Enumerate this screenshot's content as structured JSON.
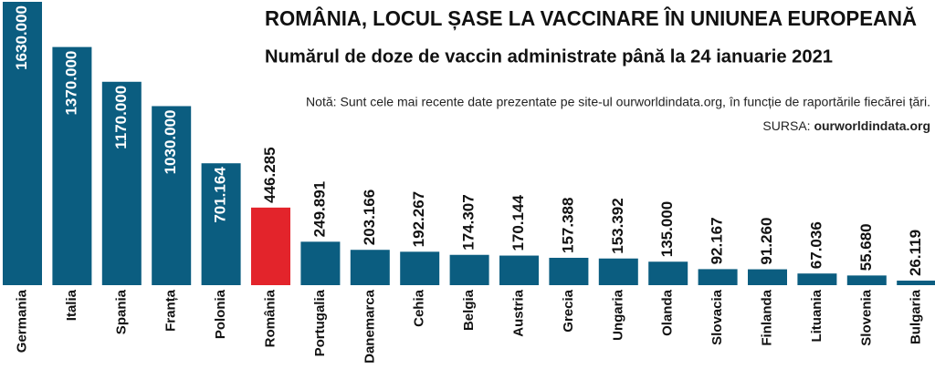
{
  "chart_data": {
    "type": "bar",
    "title": "ROMÂNIA, LOCUL ȘASE LA VACCINARE ÎN UNIUNEA EUROPEANĂ",
    "subtitle": "Numărul de doze de vaccin administrate până la 24 ianuarie 2021",
    "note": "Notă: Sunt cele mai recente date prezentate pe site-ul ourworldindata.org, în funcție de raportările fiecărei țări.",
    "source_label": "SURSA:",
    "source": "ourworldindata.org",
    "categories": [
      "Germania",
      "Italia",
      "Spania",
      "Franța",
      "Polonia",
      "România",
      "Portugalia",
      "Danemarca",
      "Cehia",
      "Belgia",
      "Austria",
      "Grecia",
      "Ungaria",
      "Olanda",
      "Slovacia",
      "Finlanda",
      "Lituania",
      "Slovenia",
      "Bulgaria"
    ],
    "values": [
      1630000,
      1370000,
      1170000,
      1030000,
      701164,
      446285,
      249891,
      203166,
      192267,
      174307,
      170144,
      157388,
      153392,
      135000,
      92167,
      91260,
      67036,
      55680,
      26119
    ],
    "value_labels": [
      "1630.000",
      "1370.000",
      "1170.000",
      "1030.000",
      "701.164",
      "446.285",
      "249.891",
      "203.166",
      "192.267",
      "174.307",
      "170.144",
      "157.388",
      "153.392",
      "135.000",
      "92.167",
      "91.260",
      "67.036",
      "55.680",
      "26.119"
    ],
    "colors": [
      "#0b5d80",
      "#0b5d80",
      "#0b5d80",
      "#0b5d80",
      "#0b5d80",
      "#e3242b",
      "#0b5d80",
      "#0b5d80",
      "#0b5d80",
      "#0b5d80",
      "#0b5d80",
      "#0b5d80",
      "#0b5d80",
      "#0b5d80",
      "#0b5d80",
      "#0b5d80",
      "#0b5d80",
      "#0b5d80",
      "#0b5d80"
    ]
  }
}
